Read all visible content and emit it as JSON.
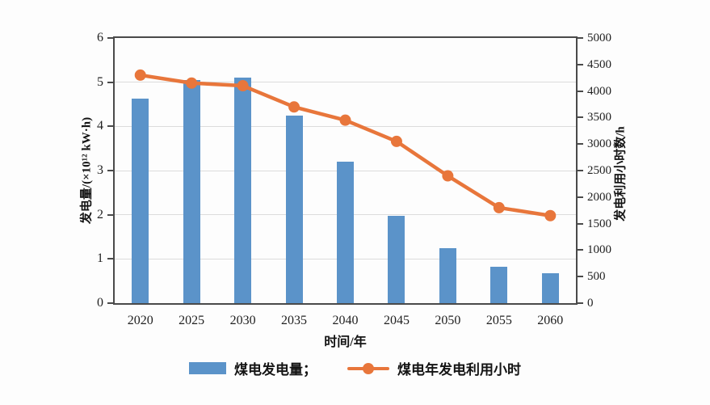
{
  "chart_data": {
    "type": "bar+line",
    "title": "",
    "categories": [
      "2020",
      "2025",
      "2030",
      "2035",
      "2040",
      "2045",
      "2050",
      "2055",
      "2060"
    ],
    "series": [
      {
        "name": "煤电发电量",
        "type": "bar",
        "axis": "left",
        "color": "#5b93c9",
        "values": [
          4.63,
          5.05,
          5.1,
          4.25,
          3.2,
          1.98,
          1.25,
          0.82,
          0.67
        ]
      },
      {
        "name": "煤电年发电利用小时",
        "type": "line",
        "axis": "right",
        "color": "#e8763b",
        "values": [
          4300,
          4150,
          4100,
          3700,
          3450,
          3050,
          2400,
          1800,
          1650
        ]
      }
    ],
    "left_axis": {
      "label": "发电量/(×10¹² kW·h)",
      "min": 0,
      "max": 6,
      "step": 1,
      "ticks": [
        0,
        1,
        2,
        3,
        4,
        5,
        6
      ]
    },
    "right_axis": {
      "label": "发电利用小时数/h",
      "min": 0,
      "max": 5000,
      "step": 500,
      "ticks": [
        0,
        500,
        1000,
        1500,
        2000,
        2500,
        3000,
        3500,
        4000,
        4500,
        5000
      ]
    },
    "x_axis": {
      "label": "时间/年"
    },
    "legend": {
      "position": "bottom",
      "items": [
        {
          "label": "煤电发电量；",
          "marker": "bar-swatch",
          "color": "#5b93c9"
        },
        {
          "label": "煤电年发电利用小时",
          "marker": "line-marker",
          "color": "#e8763b"
        }
      ]
    },
    "layout_hints": {
      "grid": "horizontal gridlines at left-axis values 1-5",
      "plot_border": "#4a4a4a",
      "grid_color": "#dcdcdc",
      "background": "#fdfdfd"
    }
  }
}
